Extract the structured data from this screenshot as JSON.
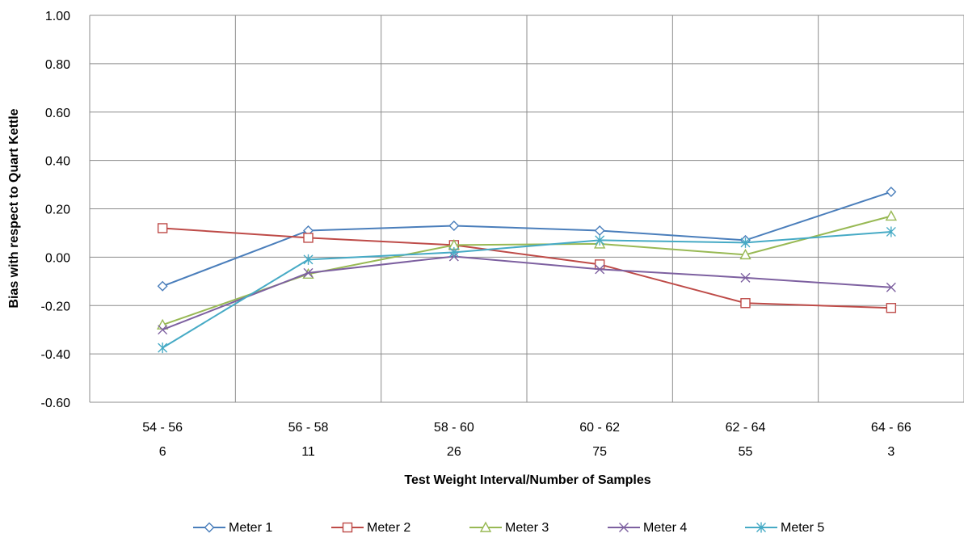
{
  "chart_data": {
    "type": "line",
    "title": "",
    "xlabel": "Test Weight Interval/Number of Samples",
    "ylabel": "Bias with respect to Quart Kettle",
    "categories": [
      {
        "interval": "54 - 56",
        "samples": "6"
      },
      {
        "interval": "56 - 58",
        "samples": "11"
      },
      {
        "interval": "58 - 60",
        "samples": "26"
      },
      {
        "interval": "60 - 62",
        "samples": "75"
      },
      {
        "interval": "62 - 64",
        "samples": "55"
      },
      {
        "interval": "64 - 66",
        "samples": "3"
      }
    ],
    "ylim": [
      -0.6,
      1.0
    ],
    "yticks": [
      "1.00",
      "0.80",
      "0.60",
      "0.40",
      "0.20",
      "0.00",
      "-0.20",
      "-0.40",
      "-0.60"
    ],
    "ytick_values": [
      1.0,
      0.8,
      0.6,
      0.4,
      0.2,
      0.0,
      -0.2,
      -0.4,
      -0.6
    ],
    "grid": true,
    "legend_position": "bottom",
    "series": [
      {
        "name": "Meter 1",
        "color": "#4a7ebb",
        "marker": "diamond",
        "values": [
          -0.12,
          0.11,
          0.13,
          0.11,
          0.07,
          0.27
        ]
      },
      {
        "name": "Meter 2",
        "color": "#be4b48",
        "marker": "square",
        "values": [
          0.12,
          0.08,
          0.05,
          -0.03,
          -0.19,
          -0.21
        ]
      },
      {
        "name": "Meter 3",
        "color": "#98b954",
        "marker": "triangle",
        "values": [
          -0.28,
          -0.07,
          0.05,
          0.055,
          0.01,
          0.17
        ]
      },
      {
        "name": "Meter 4",
        "color": "#7d60a0",
        "marker": "x",
        "values": [
          -0.3,
          -0.065,
          0.003,
          -0.05,
          -0.085,
          -0.125
        ]
      },
      {
        "name": "Meter 5",
        "color": "#46aac5",
        "marker": "star",
        "values": [
          -0.375,
          -0.01,
          0.02,
          0.07,
          0.06,
          0.105
        ]
      }
    ]
  }
}
